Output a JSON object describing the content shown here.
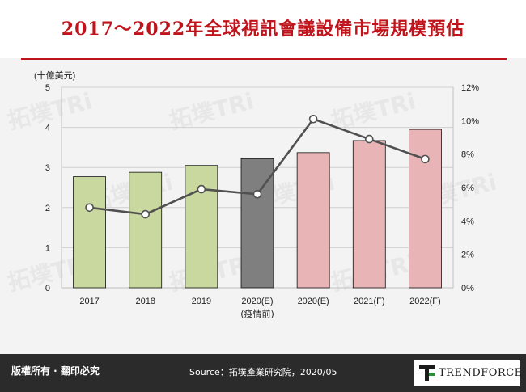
{
  "title": "2017～2022年全球視訊會議設備市場規模預估",
  "watermark": "拓墣TRi",
  "footer": {
    "rights": "版權所有 · 翻印必究",
    "source": "Source：拓墣產業研究院，2020/05",
    "logo": "TRENDFORCE"
  },
  "chart_data": {
    "type": "bar",
    "ylabel": "(十億美元)",
    "ylim": [
      0,
      5
    ],
    "y_ticks": [
      "0",
      "1",
      "2",
      "3",
      "4",
      "5"
    ],
    "y2lim": [
      0,
      12
    ],
    "y2_ticks": [
      "0%",
      "2%",
      "4%",
      "6%",
      "8%",
      "10%",
      "12%"
    ],
    "categories": [
      "2017",
      "2018",
      "2019",
      "2020(E)",
      "2020(E)",
      "2021(F)",
      "2022(F)"
    ],
    "category_sublabels": [
      "",
      "",
      "",
      "(疫情前)",
      "",
      "",
      ""
    ],
    "bar_values": [
      2.77,
      2.88,
      3.05,
      3.22,
      3.37,
      3.67,
      3.95
    ],
    "bar_colors": [
      "#c8d89e",
      "#c8d89e",
      "#c8d89e",
      "#7f7f7f",
      "#e8b4b6",
      "#e8b4b6",
      "#e8b4b6"
    ],
    "line_values": [
      4.8,
      4.4,
      5.9,
      5.6,
      10.1,
      8.9,
      7.7
    ],
    "line_color": "#505050",
    "grid": true
  }
}
